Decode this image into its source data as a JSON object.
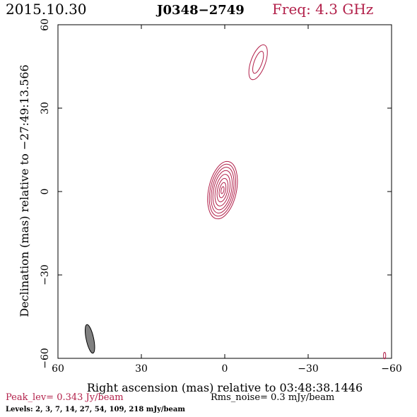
{
  "header": {
    "date": "2015.10.30",
    "source": "J0348−2749",
    "freq": "Freq: 4.3 GHz"
  },
  "footer": {
    "peak": "Peak_lev=  0.343 Jy/beam",
    "rms": "Rms_noise=   0.3 mJy/beam",
    "levels": "Levels:   2,   3,   7,   14,   27,   54,  109,  218 mJy/beam"
  },
  "colors": {
    "contour": "#b2204a",
    "axis": "#000000",
    "beam": "#808080"
  },
  "chart_data": {
    "type": "contour",
    "xlabel": "Right ascension (mas) relative to 03:48:38.1446",
    "ylabel": "Declination (mas) relative to −27:49:13.566",
    "xlim": [
      60,
      -60
    ],
    "ylim": [
      -60,
      60
    ],
    "xticks": [
      60,
      30,
      0,
      -30,
      -60
    ],
    "yticks": [
      -60,
      -30,
      0,
      30,
      60
    ],
    "xtick_labels": [
      "60",
      "30",
      "0",
      "−30",
      "−60"
    ],
    "ytick_labels": [
      "−60",
      "−30",
      "0",
      "30",
      "60"
    ],
    "contour_levels_mJy": [
      2,
      3,
      7,
      14,
      27,
      54,
      109,
      218
    ],
    "peak_Jy_per_beam": 0.343,
    "rms_mJy_per_beam": 0.3,
    "core_component": {
      "ra": 0.8,
      "dec": 0.5,
      "position_angle_deg": 12,
      "contours": [
        {
          "a": 5.0,
          "b": 10.5
        },
        {
          "a": 4.4,
          "b": 9.5
        },
        {
          "a": 3.8,
          "b": 8.4
        },
        {
          "a": 3.2,
          "b": 7.2
        },
        {
          "a": 2.5,
          "b": 5.8
        },
        {
          "a": 1.8,
          "b": 4.3
        },
        {
          "a": 1.1,
          "b": 2.8
        },
        {
          "a": 0.5,
          "b": 1.3
        }
      ]
    },
    "jet_component": {
      "ra": -12.0,
      "dec": 46.5,
      "position_angle_deg": 20,
      "contours": [
        {
          "a": 2.6,
          "b": 6.6
        },
        {
          "a": 1.4,
          "b": 4.2
        }
      ]
    },
    "edge_feature": {
      "ra": -57.5,
      "dec": -59.0,
      "a": 0.4,
      "b": 1.2
    },
    "beam": {
      "ra": 48.5,
      "dec": -53.0,
      "major": 10.5,
      "minor": 2.7,
      "position_angle_deg": -12
    }
  }
}
